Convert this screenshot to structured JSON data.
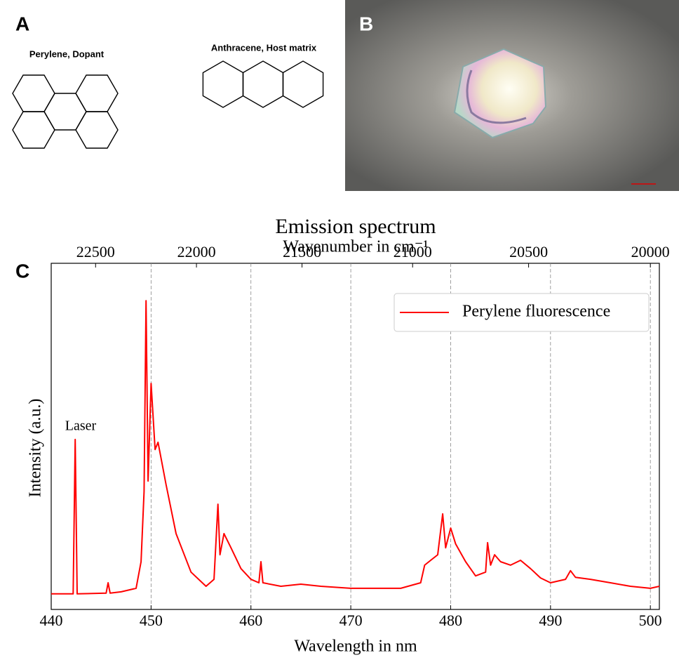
{
  "panels": {
    "a": {
      "label": "A",
      "captions": [
        "Perylene, Dopant",
        "Anthracene, Host matrix"
      ]
    },
    "b": {
      "label": "B"
    },
    "c": {
      "label": "C"
    }
  },
  "chart_data": {
    "type": "line",
    "title": "Emission spectrum",
    "x2label": "Wavenumber in cm⁻¹",
    "xlabel": "Wavelength in nm",
    "ylabel": "Intensity (a.u.)",
    "annotations": [
      "Laser"
    ],
    "x": [
      440,
      442.2,
      442.4,
      442.6,
      445.5,
      445.7,
      445.9,
      447,
      448.5,
      449,
      449.3,
      449.5,
      449.7,
      450,
      450.4,
      450.7,
      451.5,
      452.5,
      454,
      455.5,
      456.3,
      456.7,
      456.9,
      457.3,
      458,
      459,
      460,
      460.8,
      461,
      461.2,
      463,
      465,
      467,
      470,
      473,
      475,
      477,
      477.4,
      478,
      478.7,
      479.2,
      479.5,
      480,
      480.5,
      481.5,
      482.5,
      483.5,
      483.7,
      484,
      484.4,
      485,
      486,
      487,
      488,
      489,
      490,
      491.5,
      492,
      492.5,
      494,
      496,
      498,
      500,
      500.9
    ],
    "series": [
      {
        "name": "Perylene fluorescence",
        "color": "#ff0000",
        "values": [
          0.045,
          0.045,
          0.491,
          0.045,
          0.047,
          0.077,
          0.047,
          0.051,
          0.061,
          0.138,
          0.341,
          0.892,
          0.371,
          0.653,
          0.462,
          0.483,
          0.361,
          0.219,
          0.108,
          0.067,
          0.087,
          0.304,
          0.158,
          0.219,
          0.178,
          0.118,
          0.087,
          0.077,
          0.138,
          0.077,
          0.067,
          0.073,
          0.067,
          0.061,
          0.061,
          0.061,
          0.077,
          0.128,
          0.142,
          0.158,
          0.276,
          0.178,
          0.235,
          0.189,
          0.138,
          0.097,
          0.108,
          0.193,
          0.128,
          0.158,
          0.138,
          0.128,
          0.142,
          0.118,
          0.091,
          0.077,
          0.087,
          0.112,
          0.093,
          0.087,
          0.077,
          0.067,
          0.061,
          0.067
        ]
      }
    ],
    "xlim": [
      440,
      500.9
    ],
    "ylim": [
      0,
      1
    ],
    "xticks": [
      440,
      450,
      460,
      470,
      480,
      490,
      500
    ],
    "x2ticks": [
      22500,
      22000,
      21500,
      21000,
      20500,
      20000
    ],
    "grid": true,
    "legend": "upper right"
  }
}
